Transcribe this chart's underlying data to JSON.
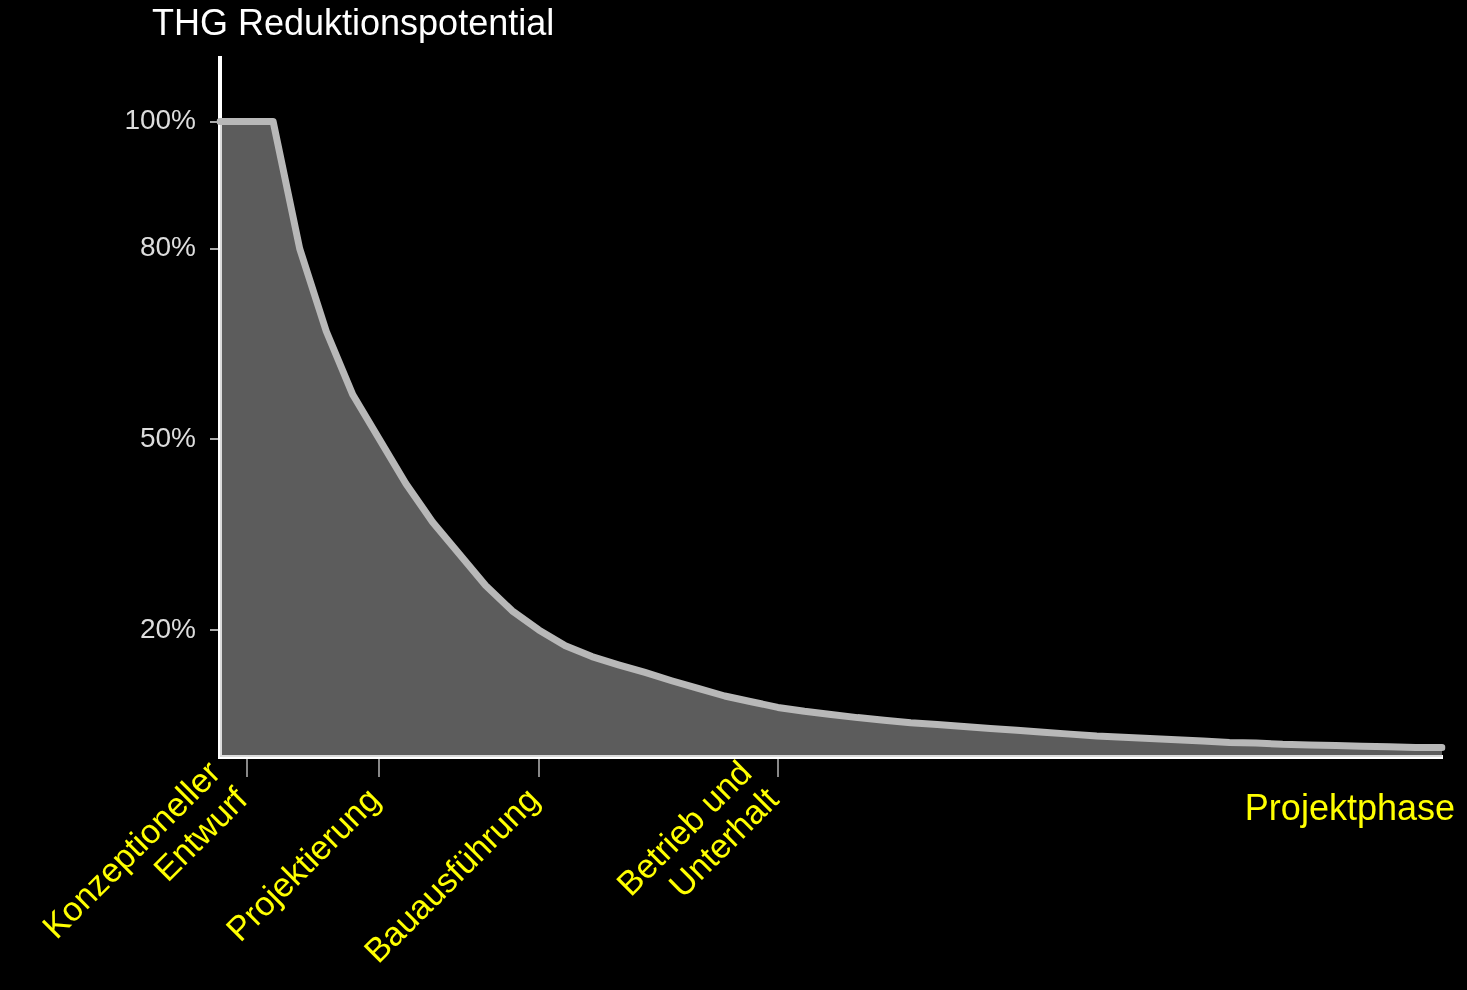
{
  "chart_data": {
    "type": "area",
    "title": "THG Reduktionspotential",
    "xlabel": "Projektphase",
    "categories": [
      null,
      "Konzeptioneller\nEntwurf",
      null,
      null,
      null,
      null,
      "Projektierung",
      null,
      null,
      null,
      null,
      null,
      "Bauausführung",
      null,
      null,
      null,
      null,
      null,
      null,
      null,
      null,
      "Betrieb und\nUnterhalt",
      null,
      null,
      null,
      null,
      null,
      null,
      null,
      null,
      null,
      null,
      null,
      null,
      null,
      null,
      null,
      null,
      null,
      null,
      null,
      null,
      null,
      null,
      null,
      null,
      null
    ],
    "series": [
      {
        "color": "#b8b8b8",
        "values": [
          100,
          100,
          100,
          80,
          67,
          57,
          50,
          43,
          37,
          32,
          27,
          23,
          20,
          17.5,
          15.8,
          14.5,
          13.3,
          12,
          10.8,
          9.6,
          8.7,
          7.8,
          7.2,
          6.7,
          6.2,
          5.8,
          5.4,
          5.1,
          4.8,
          4.5,
          4.2,
          3.9,
          3.6,
          3.3,
          3.1,
          2.9,
          2.7,
          2.5,
          2.3,
          2.2,
          2.0,
          1.9,
          1.8,
          1.7,
          1.6,
          1.5,
          1.5
        ]
      }
    ],
    "ylim": [
      0,
      110
    ],
    "yticks": [
      {
        "value": 20,
        "label": "20%"
      },
      {
        "value": 50,
        "label": "50%"
      },
      {
        "value": 80,
        "label": "80%"
      },
      {
        "value": 100,
        "label": "100%"
      }
    ],
    "grid": false,
    "legend": false,
    "marker": "none",
    "line_style": "solid"
  }
}
